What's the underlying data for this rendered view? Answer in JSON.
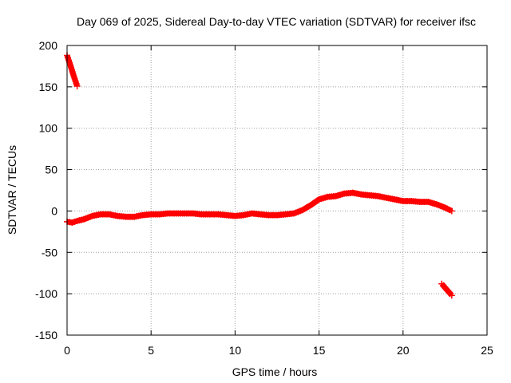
{
  "chart_data": {
    "type": "scatter",
    "title": "Day 069 of 2025, Sidereal Day-to-day VTEC variation (SDTVAR) for receiver ifsc",
    "xlabel": "GPS time / hours",
    "ylabel": "SDTVAR / TECUs",
    "xlim": [
      0,
      25
    ],
    "ylim": [
      -150,
      200
    ],
    "x_ticks": [
      0,
      5,
      10,
      15,
      20,
      25
    ],
    "x_tick_labels": [
      "0",
      "5",
      "10",
      "15",
      "20",
      "25"
    ],
    "y_ticks": [
      -150,
      -100,
      -50,
      0,
      50,
      100,
      150,
      200
    ],
    "y_tick_labels": [
      "-150",
      "-100",
      "-50",
      "0",
      "50",
      "100",
      "150",
      "200"
    ],
    "grid": true,
    "series_color": "#ff0000",
    "segments": [
      {
        "x": [
          0.0,
          0.2,
          0.4,
          0.6
        ],
        "y": [
          188,
          176,
          163,
          151
        ]
      },
      {
        "x": [
          0.0,
          0.3,
          0.6,
          1.0,
          1.5,
          2.0,
          2.5,
          3.0,
          3.5,
          4.0,
          4.5,
          5.0,
          5.5,
          6.0,
          6.5,
          7.0,
          7.5,
          8.0,
          8.5,
          9.0,
          9.5,
          10.0,
          10.5,
          11.0,
          11.5,
          12.0,
          12.5,
          13.0,
          13.5,
          14.0,
          14.5,
          15.0,
          15.5,
          16.0,
          16.5,
          17.0,
          17.5,
          18.0,
          18.5,
          19.0,
          19.5,
          20.0,
          20.5,
          21.0,
          21.5,
          22.0,
          22.5,
          22.9
        ],
        "y": [
          -13,
          -14,
          -12,
          -10,
          -6,
          -4,
          -4,
          -6,
          -7,
          -7,
          -5,
          -4,
          -4,
          -3,
          -3,
          -3,
          -3,
          -4,
          -4,
          -4,
          -5,
          -6,
          -5,
          -3,
          -4,
          -5,
          -5,
          -4,
          -3,
          1,
          7,
          14,
          17,
          18,
          21,
          22,
          20,
          19,
          18,
          16,
          14,
          12,
          12,
          11,
          11,
          8,
          4,
          0
        ]
      },
      {
        "x": [
          22.3,
          22.6,
          22.9
        ],
        "y": [
          -88,
          -95,
          -102
        ]
      }
    ]
  }
}
